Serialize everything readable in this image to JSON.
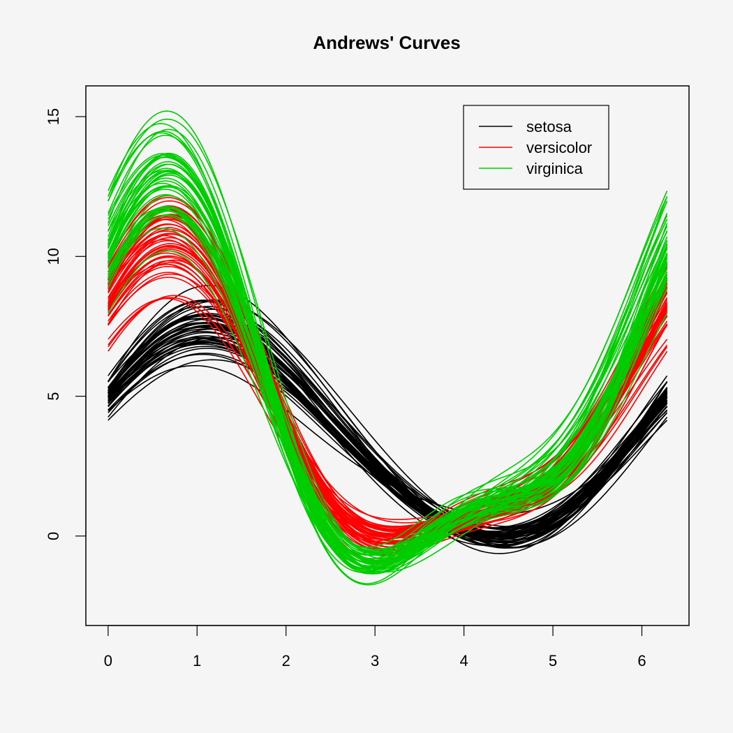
{
  "chart_data": {
    "type": "line",
    "title": "Andrews' Curves",
    "xlabel": "",
    "ylabel": "",
    "xlim": [
      -0.25,
      6.53
    ],
    "ylim": [
      -3.2,
      16.1
    ],
    "x_ticks": [
      0,
      1,
      2,
      3,
      4,
      5,
      6
    ],
    "y_ticks": [
      0,
      5,
      10,
      15
    ],
    "grid": false,
    "legend_position": "top-right",
    "x_range": [
      0,
      6.2832
    ],
    "function": "f(t) = x1/sqrt(2) + x2*sin(t) + x3*cos(t) + x4*sin(2t)",
    "series": [
      {
        "name": "setosa",
        "color": "#000000",
        "curves": [
          [
            5.1,
            3.5,
            1.4,
            0.2
          ],
          [
            4.9,
            3.0,
            1.4,
            0.2
          ],
          [
            4.7,
            3.2,
            1.3,
            0.2
          ],
          [
            4.6,
            3.1,
            1.5,
            0.2
          ],
          [
            5.0,
            3.6,
            1.4,
            0.2
          ],
          [
            5.4,
            3.9,
            1.7,
            0.4
          ],
          [
            4.6,
            3.4,
            1.4,
            0.3
          ],
          [
            5.0,
            3.4,
            1.5,
            0.2
          ],
          [
            4.4,
            2.9,
            1.4,
            0.2
          ],
          [
            4.9,
            3.1,
            1.5,
            0.1
          ],
          [
            5.4,
            3.7,
            1.5,
            0.2
          ],
          [
            4.8,
            3.4,
            1.6,
            0.2
          ],
          [
            4.8,
            3.0,
            1.4,
            0.1
          ],
          [
            4.3,
            3.0,
            1.1,
            0.1
          ],
          [
            5.8,
            4.0,
            1.2,
            0.2
          ],
          [
            5.7,
            4.4,
            1.5,
            0.4
          ],
          [
            5.4,
            3.9,
            1.3,
            0.4
          ],
          [
            5.1,
            3.5,
            1.4,
            0.3
          ],
          [
            5.7,
            3.8,
            1.7,
            0.3
          ],
          [
            5.1,
            3.8,
            1.5,
            0.3
          ],
          [
            5.4,
            3.4,
            1.7,
            0.2
          ],
          [
            5.1,
            3.7,
            1.5,
            0.4
          ],
          [
            4.6,
            3.6,
            1.0,
            0.2
          ],
          [
            5.1,
            3.3,
            1.7,
            0.5
          ],
          [
            4.8,
            3.4,
            1.9,
            0.2
          ],
          [
            5.0,
            3.0,
            1.6,
            0.2
          ],
          [
            5.0,
            3.4,
            1.6,
            0.4
          ],
          [
            5.2,
            3.5,
            1.5,
            0.2
          ],
          [
            5.2,
            3.4,
            1.4,
            0.2
          ],
          [
            4.7,
            3.2,
            1.6,
            0.2
          ],
          [
            4.8,
            3.1,
            1.6,
            0.2
          ],
          [
            5.4,
            3.4,
            1.5,
            0.4
          ],
          [
            5.2,
            4.1,
            1.5,
            0.1
          ],
          [
            5.5,
            4.2,
            1.4,
            0.2
          ],
          [
            4.9,
            3.1,
            1.5,
            0.2
          ],
          [
            5.0,
            3.2,
            1.2,
            0.2
          ],
          [
            5.5,
            3.5,
            1.3,
            0.2
          ],
          [
            4.9,
            3.6,
            1.4,
            0.1
          ],
          [
            4.4,
            3.0,
            1.3,
            0.2
          ],
          [
            5.1,
            3.4,
            1.5,
            0.2
          ],
          [
            5.0,
            3.5,
            1.3,
            0.3
          ],
          [
            4.5,
            2.3,
            1.3,
            0.3
          ],
          [
            4.4,
            3.2,
            1.3,
            0.2
          ],
          [
            5.0,
            3.5,
            1.6,
            0.6
          ],
          [
            5.1,
            3.8,
            1.9,
            0.4
          ],
          [
            4.8,
            3.0,
            1.4,
            0.3
          ],
          [
            5.1,
            3.8,
            1.6,
            0.2
          ],
          [
            4.6,
            3.2,
            1.4,
            0.2
          ],
          [
            5.3,
            3.7,
            1.5,
            0.2
          ],
          [
            5.0,
            3.3,
            1.4,
            0.2
          ]
        ]
      },
      {
        "name": "versicolor",
        "color": "#ff0000",
        "curves": [
          [
            7.0,
            3.2,
            4.7,
            1.4
          ],
          [
            6.4,
            3.2,
            4.5,
            1.5
          ],
          [
            6.9,
            3.1,
            4.9,
            1.5
          ],
          [
            5.5,
            2.3,
            4.0,
            1.3
          ],
          [
            6.5,
            2.8,
            4.6,
            1.5
          ],
          [
            5.7,
            2.8,
            4.5,
            1.3
          ],
          [
            6.3,
            3.3,
            4.7,
            1.6
          ],
          [
            4.9,
            2.4,
            3.3,
            1.0
          ],
          [
            6.6,
            2.9,
            4.6,
            1.3
          ],
          [
            5.2,
            2.7,
            3.9,
            1.4
          ],
          [
            5.0,
            2.0,
            3.5,
            1.0
          ],
          [
            5.9,
            3.0,
            4.2,
            1.5
          ],
          [
            6.0,
            2.2,
            4.0,
            1.0
          ],
          [
            6.1,
            2.9,
            4.7,
            1.4
          ],
          [
            5.6,
            2.9,
            3.6,
            1.3
          ],
          [
            6.7,
            3.1,
            4.4,
            1.4
          ],
          [
            5.6,
            3.0,
            4.5,
            1.5
          ],
          [
            5.8,
            2.7,
            4.1,
            1.0
          ],
          [
            6.2,
            2.2,
            4.5,
            1.5
          ],
          [
            5.6,
            2.5,
            3.9,
            1.1
          ],
          [
            5.9,
            3.2,
            4.8,
            1.8
          ],
          [
            6.1,
            2.8,
            4.0,
            1.3
          ],
          [
            6.3,
            2.5,
            4.9,
            1.5
          ],
          [
            6.1,
            2.8,
            4.7,
            1.2
          ],
          [
            6.4,
            2.9,
            4.3,
            1.3
          ],
          [
            6.6,
            3.0,
            4.4,
            1.4
          ],
          [
            6.8,
            2.8,
            4.8,
            1.4
          ],
          [
            6.7,
            3.0,
            5.0,
            1.7
          ],
          [
            6.0,
            2.9,
            4.5,
            1.5
          ],
          [
            5.7,
            2.6,
            3.5,
            1.0
          ],
          [
            5.5,
            2.4,
            3.8,
            1.1
          ],
          [
            5.5,
            2.4,
            3.7,
            1.0
          ],
          [
            5.8,
            2.7,
            3.9,
            1.2
          ],
          [
            6.0,
            2.7,
            5.1,
            1.6
          ],
          [
            5.4,
            3.0,
            4.5,
            1.5
          ],
          [
            6.0,
            3.4,
            4.5,
            1.6
          ],
          [
            6.7,
            3.1,
            4.7,
            1.5
          ],
          [
            6.3,
            2.3,
            4.4,
            1.3
          ],
          [
            5.6,
            3.0,
            4.1,
            1.3
          ],
          [
            5.5,
            2.5,
            4.0,
            1.3
          ],
          [
            5.5,
            2.6,
            4.4,
            1.2
          ],
          [
            6.1,
            3.0,
            4.6,
            1.4
          ],
          [
            5.8,
            2.6,
            4.0,
            1.2
          ],
          [
            5.0,
            2.3,
            3.3,
            1.0
          ],
          [
            5.6,
            2.7,
            4.2,
            1.3
          ],
          [
            5.7,
            3.0,
            4.2,
            1.2
          ],
          [
            5.7,
            2.9,
            4.2,
            1.3
          ],
          [
            6.2,
            2.9,
            4.3,
            1.3
          ],
          [
            5.1,
            2.5,
            3.0,
            1.1
          ],
          [
            5.7,
            2.8,
            4.1,
            1.3
          ]
        ]
      },
      {
        "name": "virginica",
        "color": "#00cd00",
        "curves": [
          [
            6.3,
            3.3,
            6.0,
            2.5
          ],
          [
            5.8,
            2.7,
            5.1,
            1.9
          ],
          [
            7.1,
            3.0,
            5.9,
            2.1
          ],
          [
            6.3,
            2.9,
            5.6,
            1.8
          ],
          [
            6.5,
            3.0,
            5.8,
            2.2
          ],
          [
            7.6,
            3.0,
            6.6,
            2.1
          ],
          [
            4.9,
            2.5,
            4.5,
            1.7
          ],
          [
            7.3,
            2.9,
            6.3,
            1.8
          ],
          [
            6.7,
            2.5,
            5.8,
            1.8
          ],
          [
            7.2,
            3.6,
            6.1,
            2.5
          ],
          [
            6.5,
            3.2,
            5.1,
            2.0
          ],
          [
            6.4,
            2.7,
            5.3,
            1.9
          ],
          [
            6.8,
            3.0,
            5.5,
            2.1
          ],
          [
            5.7,
            2.5,
            5.0,
            2.0
          ],
          [
            5.8,
            2.8,
            5.1,
            2.4
          ],
          [
            6.4,
            3.2,
            5.3,
            2.3
          ],
          [
            6.5,
            3.0,
            5.5,
            1.8
          ],
          [
            7.7,
            3.8,
            6.7,
            2.2
          ],
          [
            7.7,
            2.6,
            6.9,
            2.3
          ],
          [
            6.0,
            2.2,
            5.0,
            1.5
          ],
          [
            6.9,
            3.2,
            5.7,
            2.3
          ],
          [
            5.6,
            2.8,
            4.9,
            2.0
          ],
          [
            7.7,
            2.8,
            6.7,
            2.0
          ],
          [
            6.3,
            2.7,
            4.9,
            1.8
          ],
          [
            6.7,
            3.3,
            5.7,
            2.1
          ],
          [
            7.2,
            3.2,
            6.0,
            1.8
          ],
          [
            6.2,
            2.8,
            4.8,
            1.8
          ],
          [
            6.1,
            3.0,
            4.9,
            1.8
          ],
          [
            6.4,
            2.8,
            5.6,
            2.1
          ],
          [
            7.2,
            3.0,
            5.8,
            1.6
          ],
          [
            7.4,
            2.8,
            6.1,
            1.9
          ],
          [
            7.9,
            3.8,
            6.4,
            2.0
          ],
          [
            6.4,
            2.8,
            5.6,
            2.2
          ],
          [
            6.3,
            2.8,
            5.1,
            1.5
          ],
          [
            6.1,
            2.6,
            5.6,
            1.4
          ],
          [
            7.7,
            3.0,
            6.1,
            2.3
          ],
          [
            6.3,
            3.4,
            5.6,
            2.4
          ],
          [
            6.4,
            3.1,
            5.5,
            1.8
          ],
          [
            6.0,
            3.0,
            4.8,
            1.8
          ],
          [
            6.9,
            3.1,
            5.4,
            2.1
          ],
          [
            6.7,
            3.1,
            5.6,
            2.4
          ],
          [
            6.9,
            3.1,
            5.1,
            2.3
          ],
          [
            5.8,
            2.7,
            5.1,
            1.9
          ],
          [
            6.8,
            3.2,
            5.9,
            2.3
          ],
          [
            6.7,
            3.3,
            5.7,
            2.5
          ],
          [
            6.7,
            3.0,
            5.2,
            2.3
          ],
          [
            6.3,
            2.5,
            5.0,
            1.9
          ],
          [
            6.5,
            3.0,
            5.2,
            2.0
          ],
          [
            6.2,
            3.4,
            5.4,
            2.3
          ],
          [
            5.9,
            3.0,
            5.1,
            1.8
          ]
        ]
      }
    ]
  }
}
